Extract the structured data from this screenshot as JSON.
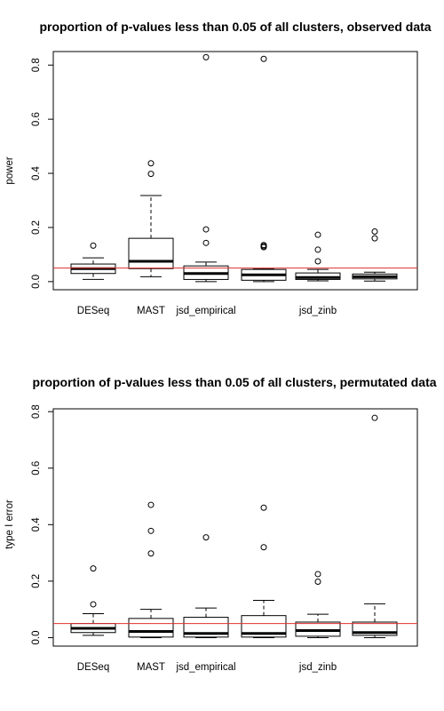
{
  "chart_data": [
    {
      "type": "boxplot",
      "title": "proportion of p-values less than 0.05 of all clusters, observed data",
      "xlabel": "",
      "ylabel": "power",
      "ylim": [
        -0.03,
        0.85
      ],
      "yticks": [
        0.0,
        0.2,
        0.4,
        0.6,
        0.8
      ],
      "ytick_labels": [
        "0.0",
        "0.2",
        "0.4",
        "0.6",
        "0.8"
      ],
      "categories": [
        "DESeq",
        "MAST",
        "jsd_empirical",
        "",
        "jsd_zinb",
        ""
      ],
      "reference_line": {
        "y": 0.05,
        "color": "#e03030"
      },
      "boxes": [
        {
          "label": "DESeq",
          "whisker_low": 0.008,
          "q1": 0.03,
          "median": 0.048,
          "q3": 0.065,
          "whisker_high": 0.088,
          "outliers": [
            0.133
          ]
        },
        {
          "label": "MAST",
          "whisker_low": 0.018,
          "q1": 0.048,
          "median": 0.075,
          "q3": 0.16,
          "whisker_high": 0.318,
          "outliers": [
            0.398,
            0.437
          ]
        },
        {
          "label": "jsd_empirical",
          "whisker_low": 0.0,
          "q1": 0.008,
          "median": 0.03,
          "q3": 0.058,
          "whisker_high": 0.072,
          "outliers": [
            0.143,
            0.193,
            0.829
          ]
        },
        {
          "label": "",
          "whisker_low": 0.0,
          "q1": 0.005,
          "median": 0.025,
          "q3": 0.045,
          "whisker_high": 0.048,
          "outliers": [
            0.127,
            0.131,
            0.135,
            0.823
          ]
        },
        {
          "label": "jsd_zinb",
          "whisker_low": 0.003,
          "q1": 0.008,
          "median": 0.015,
          "q3": 0.032,
          "whisker_high": 0.045,
          "outliers": [
            0.075,
            0.118,
            0.173
          ]
        },
        {
          "label": "",
          "whisker_low": 0.002,
          "q1": 0.01,
          "median": 0.018,
          "q3": 0.028,
          "whisker_high": 0.035,
          "outliers": [
            0.16,
            0.185
          ]
        }
      ]
    },
    {
      "type": "boxplot",
      "title": "proportion of p-values less than 0.05 of all clusters, permutated data",
      "xlabel": "",
      "ylabel": "type I error",
      "ylim": [
        -0.03,
        0.81
      ],
      "yticks": [
        0.0,
        0.2,
        0.4,
        0.6,
        0.8
      ],
      "ytick_labels": [
        "0.0",
        "0.2",
        "0.4",
        "0.6",
        "0.8"
      ],
      "categories": [
        "DESeq",
        "MAST",
        "jsd_empirical",
        "",
        "jsd_zinb",
        ""
      ],
      "reference_line": {
        "y": 0.05,
        "color": "#e03030"
      },
      "boxes": [
        {
          "label": "DESeq",
          "whisker_low": 0.008,
          "q1": 0.018,
          "median": 0.033,
          "q3": 0.05,
          "whisker_high": 0.085,
          "outliers": [
            0.118,
            0.245
          ]
        },
        {
          "label": "MAST",
          "whisker_low": 0.0,
          "q1": 0.002,
          "median": 0.022,
          "q3": 0.068,
          "whisker_high": 0.1,
          "outliers": [
            0.298,
            0.378,
            0.47
          ]
        },
        {
          "label": "jsd_empirical",
          "whisker_low": 0.0,
          "q1": 0.002,
          "median": 0.015,
          "q3": 0.072,
          "whisker_high": 0.105,
          "outliers": [
            0.355
          ]
        },
        {
          "label": "",
          "whisker_low": 0.0,
          "q1": 0.002,
          "median": 0.015,
          "q3": 0.078,
          "whisker_high": 0.132,
          "outliers": [
            0.32,
            0.46
          ]
        },
        {
          "label": "jsd_zinb",
          "whisker_low": 0.0,
          "q1": 0.005,
          "median": 0.025,
          "q3": 0.055,
          "whisker_high": 0.083,
          "outliers": [
            0.198,
            0.225
          ]
        },
        {
          "label": "",
          "whisker_low": 0.0,
          "q1": 0.008,
          "median": 0.018,
          "q3": 0.055,
          "whisker_high": 0.12,
          "outliers": [
            0.778
          ]
        }
      ]
    }
  ]
}
